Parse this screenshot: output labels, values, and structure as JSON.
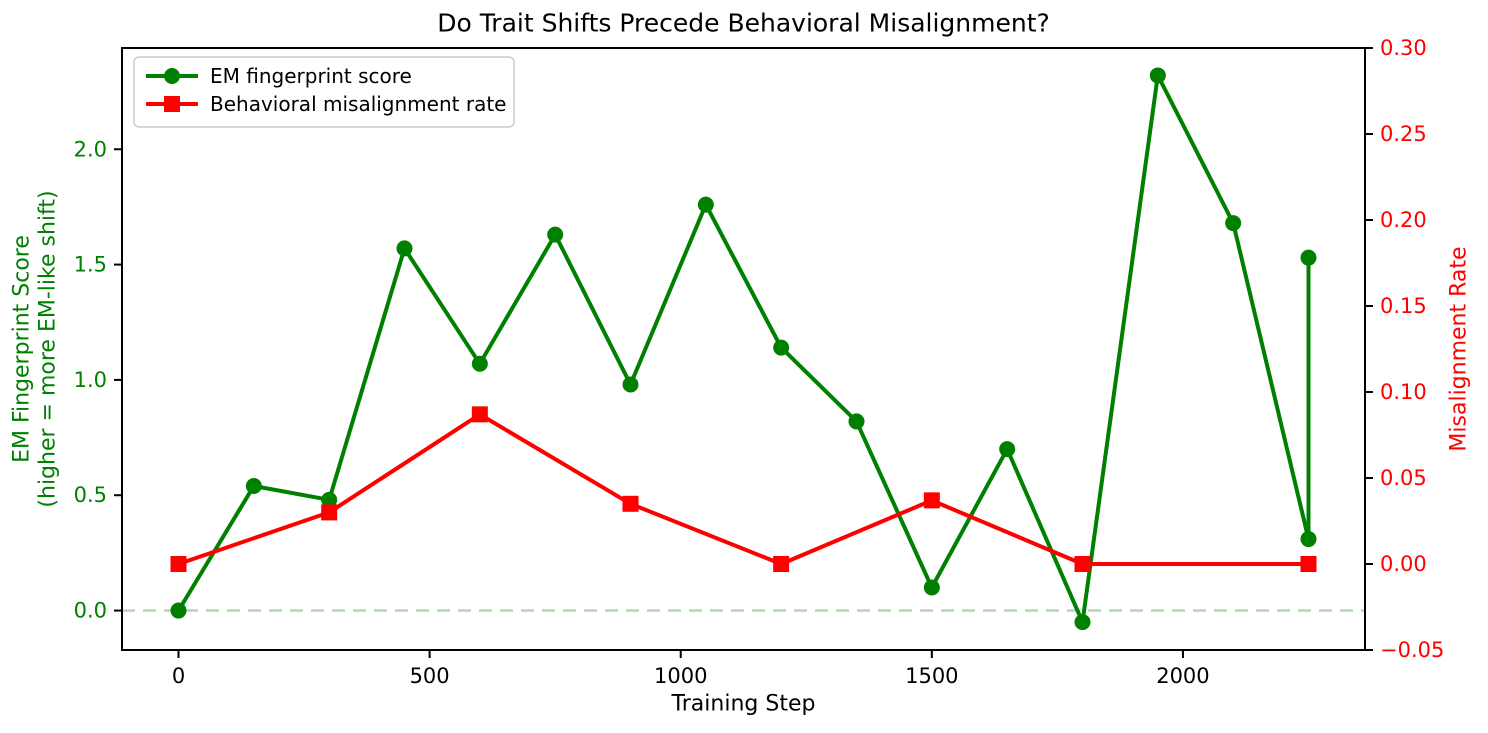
{
  "chart_data": {
    "type": "line",
    "title": "Do Trait Shifts Precede Behavioral Misalignment?",
    "xlabel": "Training Step",
    "xlim": [
      -112.5,
      2362.5
    ],
    "x_ticks": [
      {
        "v": 0,
        "label": "0"
      },
      {
        "v": 500,
        "label": "500"
      },
      {
        "v": 1000,
        "label": "1000"
      },
      {
        "v": 1500,
        "label": "1500"
      },
      {
        "v": 2000,
        "label": "2000"
      }
    ],
    "left_axis": {
      "label_line1": "EM Fingerprint Score",
      "label_line2": "(higher = more EM-like shift)",
      "color": "#008000",
      "ylim": [
        -0.171,
        2.439
      ],
      "ticks": [
        {
          "v": 0.0,
          "label": "0.0"
        },
        {
          "v": 0.5,
          "label": "0.5"
        },
        {
          "v": 1.0,
          "label": "1.0"
        },
        {
          "v": 1.5,
          "label": "1.5"
        },
        {
          "v": 2.0,
          "label": "2.0"
        }
      ]
    },
    "right_axis": {
      "label": "Misalignment Rate",
      "color": "#ff0000",
      "ylim": [
        -0.05,
        0.3
      ],
      "ticks": [
        {
          "v": -0.05,
          "label": "−0.05"
        },
        {
          "v": 0.0,
          "label": "0.00"
        },
        {
          "v": 0.05,
          "label": "0.05"
        },
        {
          "v": 0.1,
          "label": "0.10"
        },
        {
          "v": 0.15,
          "label": "0.15"
        },
        {
          "v": 0.2,
          "label": "0.20"
        },
        {
          "v": 0.25,
          "label": "0.25"
        },
        {
          "v": 0.3,
          "label": "0.30"
        }
      ]
    },
    "series": [
      {
        "name": "EM fingerprint score",
        "axis": "left",
        "color": "#008000",
        "marker": "circle",
        "x": [
          0,
          150,
          300,
          450,
          600,
          750,
          900,
          1050,
          1200,
          1350,
          1500,
          1650,
          1800,
          1950,
          2100,
          2250,
          2250
        ],
        "y": [
          0.0,
          0.54,
          0.48,
          1.57,
          1.07,
          1.63,
          0.98,
          1.76,
          1.14,
          0.82,
          0.1,
          0.7,
          -0.05,
          2.32,
          1.68,
          0.31,
          1.53
        ]
      },
      {
        "name": "Behavioral misalignment rate",
        "axis": "right",
        "color": "#ff0000",
        "marker": "square",
        "x": [
          0,
          300,
          600,
          900,
          1200,
          1500,
          1800,
          2250
        ],
        "y": [
          0.0,
          0.03,
          0.087,
          0.035,
          0.0,
          0.037,
          0.0,
          0.0
        ]
      }
    ],
    "reference_line": {
      "axis": "left",
      "value": 0.0,
      "style": "dashed",
      "color": "#b3d9b3"
    },
    "legend": {
      "position": "upper left",
      "entries": [
        "EM fingerprint score",
        "Behavioral misalignment rate"
      ]
    },
    "grid": false,
    "colors": {
      "title": "#000000",
      "spine": "#000000",
      "tick": "#000000",
      "x_tick_label": "#000000",
      "legend_border": "#cccccc",
      "legend_text": "#000000"
    }
  }
}
